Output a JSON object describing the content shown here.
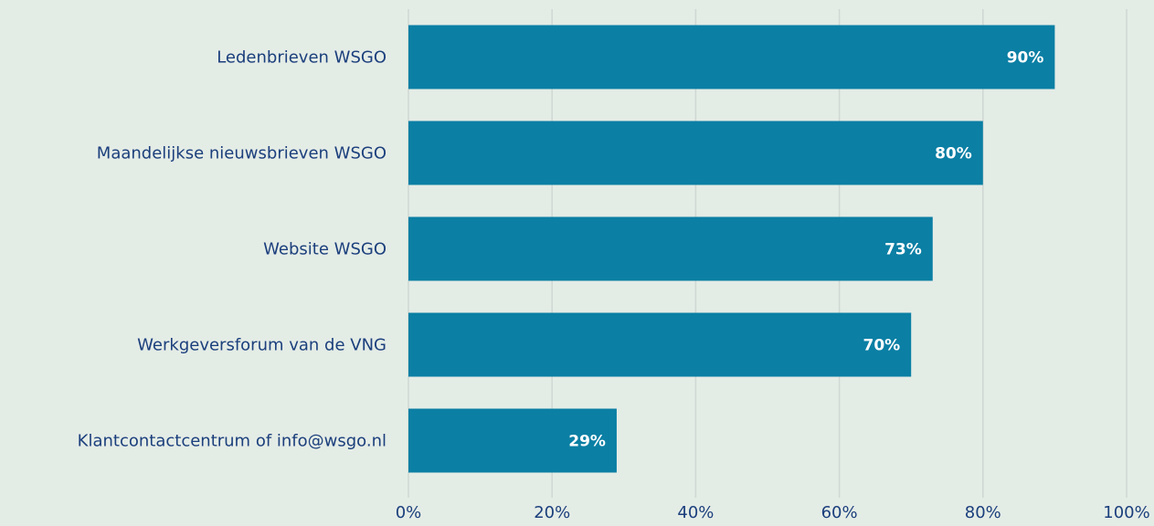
{
  "chart_data": {
    "type": "bar",
    "orientation": "horizontal",
    "categories": [
      "Ledenbrieven WSGO",
      "Maandelijkse nieuwsbrieven WSGO",
      "Website WSGO",
      "Werkgeversforum van de VNG",
      "Klantcontactcentrum of info@wsgo.nl"
    ],
    "values": [
      90,
      80,
      73,
      70,
      29
    ],
    "value_labels": [
      "90%",
      "80%",
      "73%",
      "70%",
      "29%"
    ],
    "color": "#0b7fa4",
    "xlim": [
      0,
      100
    ],
    "xticks": [
      {
        "value": 0,
        "label": "0%"
      },
      {
        "value": 20,
        "label": "20%"
      },
      {
        "value": 40,
        "label": "40%"
      },
      {
        "value": 60,
        "label": "60%"
      },
      {
        "value": 80,
        "label": "80%"
      },
      {
        "value": 100,
        "label": "100%"
      }
    ],
    "grid": true
  }
}
